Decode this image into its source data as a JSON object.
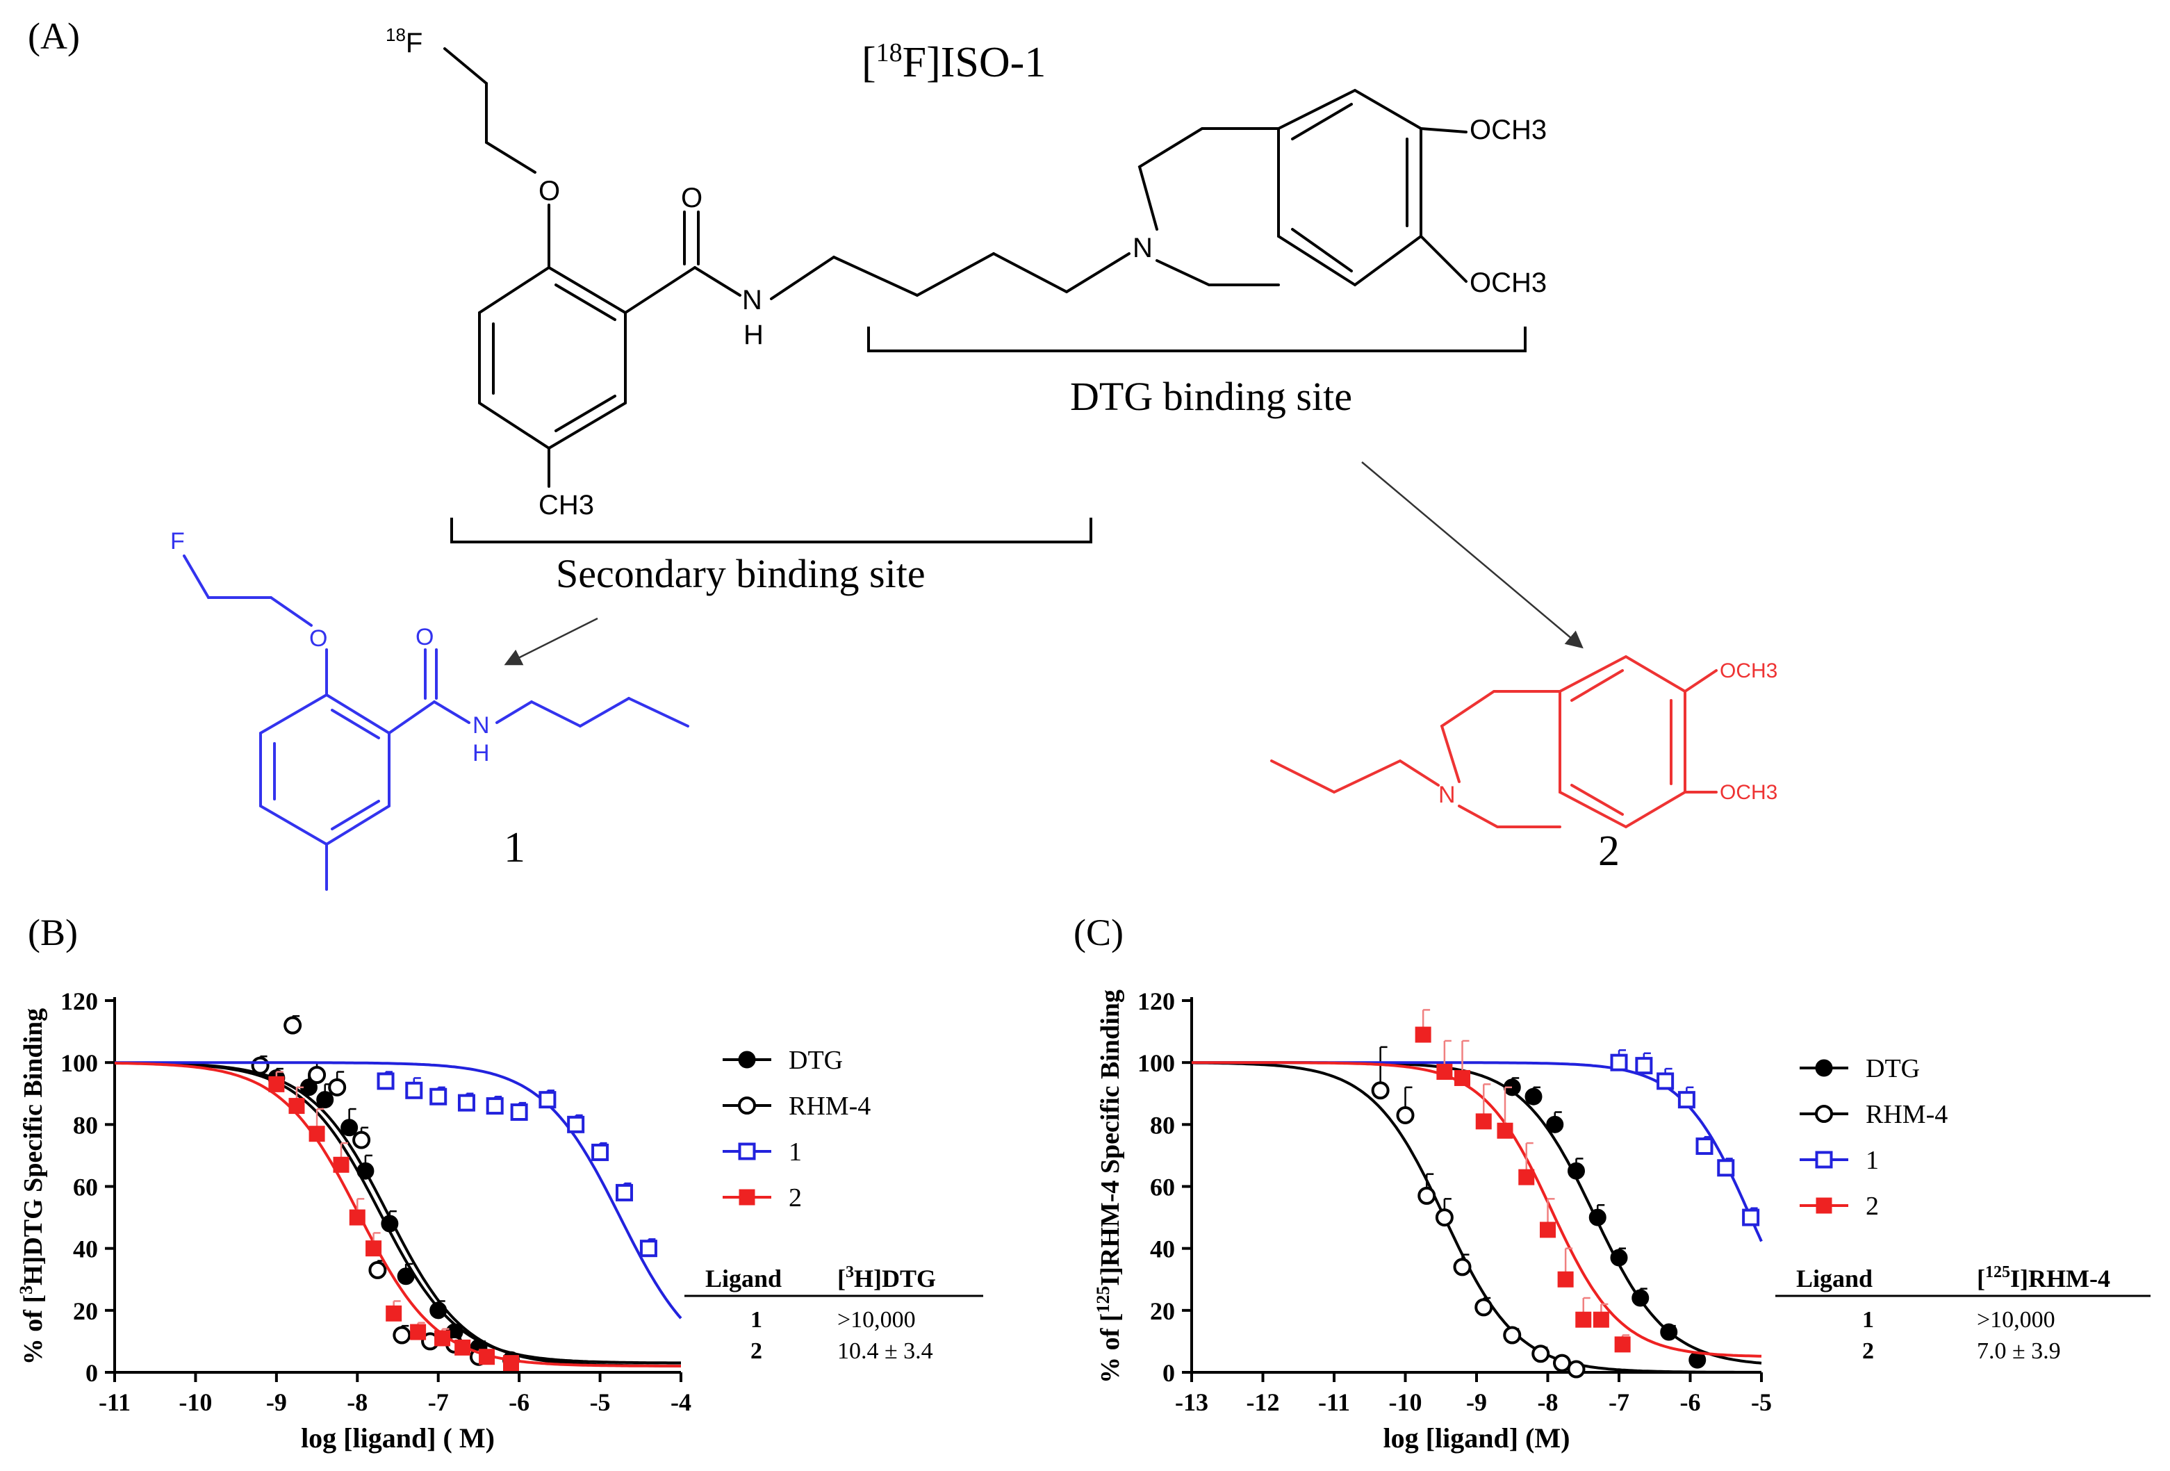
{
  "panel_a": {
    "label": "(A)",
    "title": "[18F]ISO-1",
    "title_parts": {
      "open": "[",
      "sup": "18",
      "rest": "F]ISO-1"
    },
    "atom_18F": {
      "sup": "18",
      "symbol": "F"
    },
    "atom_O_top": "O",
    "atom_O_carbonyl": "O",
    "atom_N_amide": "N",
    "atom_H_amide": "H",
    "atom_N_ring": "N",
    "atom_OCH3_1": "OCH3",
    "atom_OCH3_2": "OCH3",
    "atom_CH3": "CH3",
    "dtg_site_label": "DTG binding site",
    "secondary_site_label": "Secondary binding site",
    "fragment1": {
      "F": "F",
      "O": "O",
      "O_carbonyl": "O",
      "N": "N",
      "H": "H",
      "label": "1",
      "color": "#3333ee"
    },
    "fragment2": {
      "N": "N",
      "OCH3_1": "OCH3",
      "OCH3_2": "OCH3",
      "label": "2",
      "color": "#ee3333"
    }
  },
  "chart_data": [
    {
      "panel": "(B)",
      "type": "scatter",
      "ylabel_parts": {
        "pre": "% of [",
        "sup": "3",
        "post": "H]DTG Specific Binding"
      },
      "xlabel": "log [ligand] ( M)",
      "xlim": [
        -11,
        -4
      ],
      "ylim": [
        0,
        120
      ],
      "xticks": [
        "-11",
        "-10",
        "-9",
        "-8",
        "-7",
        "-6",
        "-5",
        "-4"
      ],
      "yticks": [
        "0",
        "20",
        "40",
        "60",
        "80",
        "100",
        "120"
      ],
      "series": [
        {
          "name": "DTG",
          "color": "#000000",
          "marker": "filled-circle",
          "x": [
            -9.0,
            -8.6,
            -8.4,
            -8.1,
            -7.9,
            -7.6,
            -7.4,
            -7.0,
            -6.8,
            -6.5,
            -6.1
          ],
          "y": [
            95,
            92,
            88,
            79,
            65,
            48,
            31,
            20,
            13,
            8,
            4
          ],
          "err": [
            3,
            4,
            5,
            6,
            5,
            4,
            4,
            3,
            2,
            2,
            1
          ],
          "fit": {
            "top": 100,
            "bottom": 2,
            "logec50": -7.62,
            "hill": 0.9
          }
        },
        {
          "name": "RHM-4",
          "color": "#000000",
          "marker": "open-circle",
          "x": [
            -9.2,
            -8.8,
            -8.5,
            -8.25,
            -7.95,
            -7.75,
            -7.45,
            -7.1,
            -6.8,
            -6.5
          ],
          "y": [
            99,
            112,
            96,
            92,
            75,
            33,
            12,
            10,
            9,
            5
          ],
          "err": [
            3,
            3,
            4,
            5,
            4,
            3,
            3,
            2,
            2,
            1
          ],
          "fit": {
            "top": 100,
            "bottom": 3,
            "logec50": -7.72,
            "hill": 0.9
          }
        },
        {
          "name": "1",
          "color": "#2222dd",
          "marker": "open-square",
          "x": [
            -7.65,
            -7.3,
            -7.0,
            -6.65,
            -6.3,
            -6.0,
            -5.65,
            -5.3,
            -5.0,
            -4.7,
            -4.4
          ],
          "y": [
            94,
            91,
            89,
            87,
            86,
            84,
            88,
            80,
            71,
            58,
            40
          ],
          "err": [
            3,
            4,
            3,
            3,
            3,
            3,
            3,
            3,
            3,
            3,
            3
          ],
          "fit": {
            "top": 100,
            "bottom": 0,
            "logec50": -4.75,
            "hill": 0.9
          }
        },
        {
          "name": "2",
          "color": "#ee2222",
          "marker": "filled-square",
          "x": [
            -9.0,
            -8.75,
            -8.5,
            -8.2,
            -8.0,
            -7.8,
            -7.55,
            -7.25,
            -6.95,
            -6.7,
            -6.4,
            -6.1
          ],
          "y": [
            93,
            86,
            77,
            67,
            50,
            40,
            19,
            13,
            11,
            8,
            5,
            3
          ],
          "err": [
            4,
            6,
            8,
            7,
            6,
            5,
            4,
            3,
            3,
            2,
            2,
            2
          ],
          "fit": {
            "top": 100,
            "bottom": 2,
            "logec50": -7.98,
            "hill": 0.9
          }
        }
      ],
      "table": {
        "header": [
          "Ligand",
          "[3H]DTG"
        ],
        "header_parts": {
          "pre": "[",
          "sup": "3",
          "post": "H]DTG"
        },
        "rows": [
          [
            "1",
            ">10,000"
          ],
          [
            "2",
            "10.4 ± 3.4"
          ]
        ]
      },
      "legend_placement": "right"
    },
    {
      "panel": "(C)",
      "type": "scatter",
      "ylabel_parts": {
        "pre": "% of [",
        "sup": "125",
        "post": "I]RHM-4 Specific Binding"
      },
      "xlabel": "log [ligand] (M)",
      "xlim": [
        -13,
        -5
      ],
      "ylim": [
        0,
        120
      ],
      "xticks": [
        "-13",
        "-12",
        "-11",
        "-10",
        "-9",
        "-8",
        "-7",
        "-6",
        "-5"
      ],
      "yticks": [
        "0",
        "20",
        "40",
        "60",
        "80",
        "100",
        "120"
      ],
      "series": [
        {
          "name": "DTG",
          "color": "#000000",
          "marker": "filled-circle",
          "x": [
            -8.5,
            -8.2,
            -7.9,
            -7.6,
            -7.3,
            -7.0,
            -6.7,
            -6.3,
            -5.9
          ],
          "y": [
            92,
            89,
            80,
            65,
            50,
            37,
            24,
            13,
            4
          ],
          "err": [
            3,
            3,
            4,
            4,
            4,
            3,
            3,
            2,
            2
          ],
          "fit": {
            "top": 100,
            "bottom": 2,
            "logec50": -7.35,
            "hill": 0.85
          }
        },
        {
          "name": "RHM-4",
          "color": "#000000",
          "marker": "open-circle",
          "x": [
            -10.35,
            -10.0,
            -9.7,
            -9.45,
            -9.2,
            -8.9,
            -8.5,
            -8.1,
            -7.8,
            -7.6
          ],
          "y": [
            91,
            83,
            57,
            50,
            34,
            21,
            12,
            6,
            3,
            1
          ],
          "err": [
            14,
            9,
            7,
            6,
            4,
            3,
            2,
            2,
            1,
            1
          ],
          "fit": {
            "top": 100,
            "bottom": 0,
            "logec50": -9.45,
            "hill": 0.85
          }
        },
        {
          "name": "1",
          "color": "#2222dd",
          "marker": "open-square",
          "x": [
            -7.0,
            -6.65,
            -6.35,
            -6.05,
            -5.8,
            -5.5,
            -5.15
          ],
          "y": [
            100,
            99,
            94,
            88,
            73,
            66,
            50
          ],
          "err": [
            4,
            4,
            4,
            4,
            3,
            3,
            3
          ],
          "fit": {
            "top": 100,
            "bottom": 0,
            "logec50": -5.15,
            "hill": 0.9
          }
        },
        {
          "name": "2",
          "color": "#ee2222",
          "marker": "filled-square",
          "x": [
            -9.75,
            -9.45,
            -9.2,
            -8.9,
            -8.6,
            -8.3,
            -8.0,
            -7.75,
            -7.5,
            -7.25,
            -6.95
          ],
          "y": [
            109,
            97,
            95,
            81,
            78,
            63,
            46,
            30,
            17,
            17,
            9
          ],
          "err": [
            8,
            10,
            12,
            12,
            14,
            11,
            10,
            10,
            7,
            5,
            3
          ],
          "fit": {
            "top": 100,
            "bottom": 5,
            "logec50": -7.95,
            "hill": 0.9
          }
        }
      ],
      "table": {
        "header": [
          "Ligand",
          "[125I]RHM-4"
        ],
        "header_parts": {
          "pre": "[",
          "sup": "125",
          "post": "I]RHM-4"
        },
        "rows": [
          [
            "1",
            ">10,000"
          ],
          [
            "2",
            "7.0 ± 3.9"
          ]
        ]
      },
      "legend_placement": "right"
    }
  ]
}
